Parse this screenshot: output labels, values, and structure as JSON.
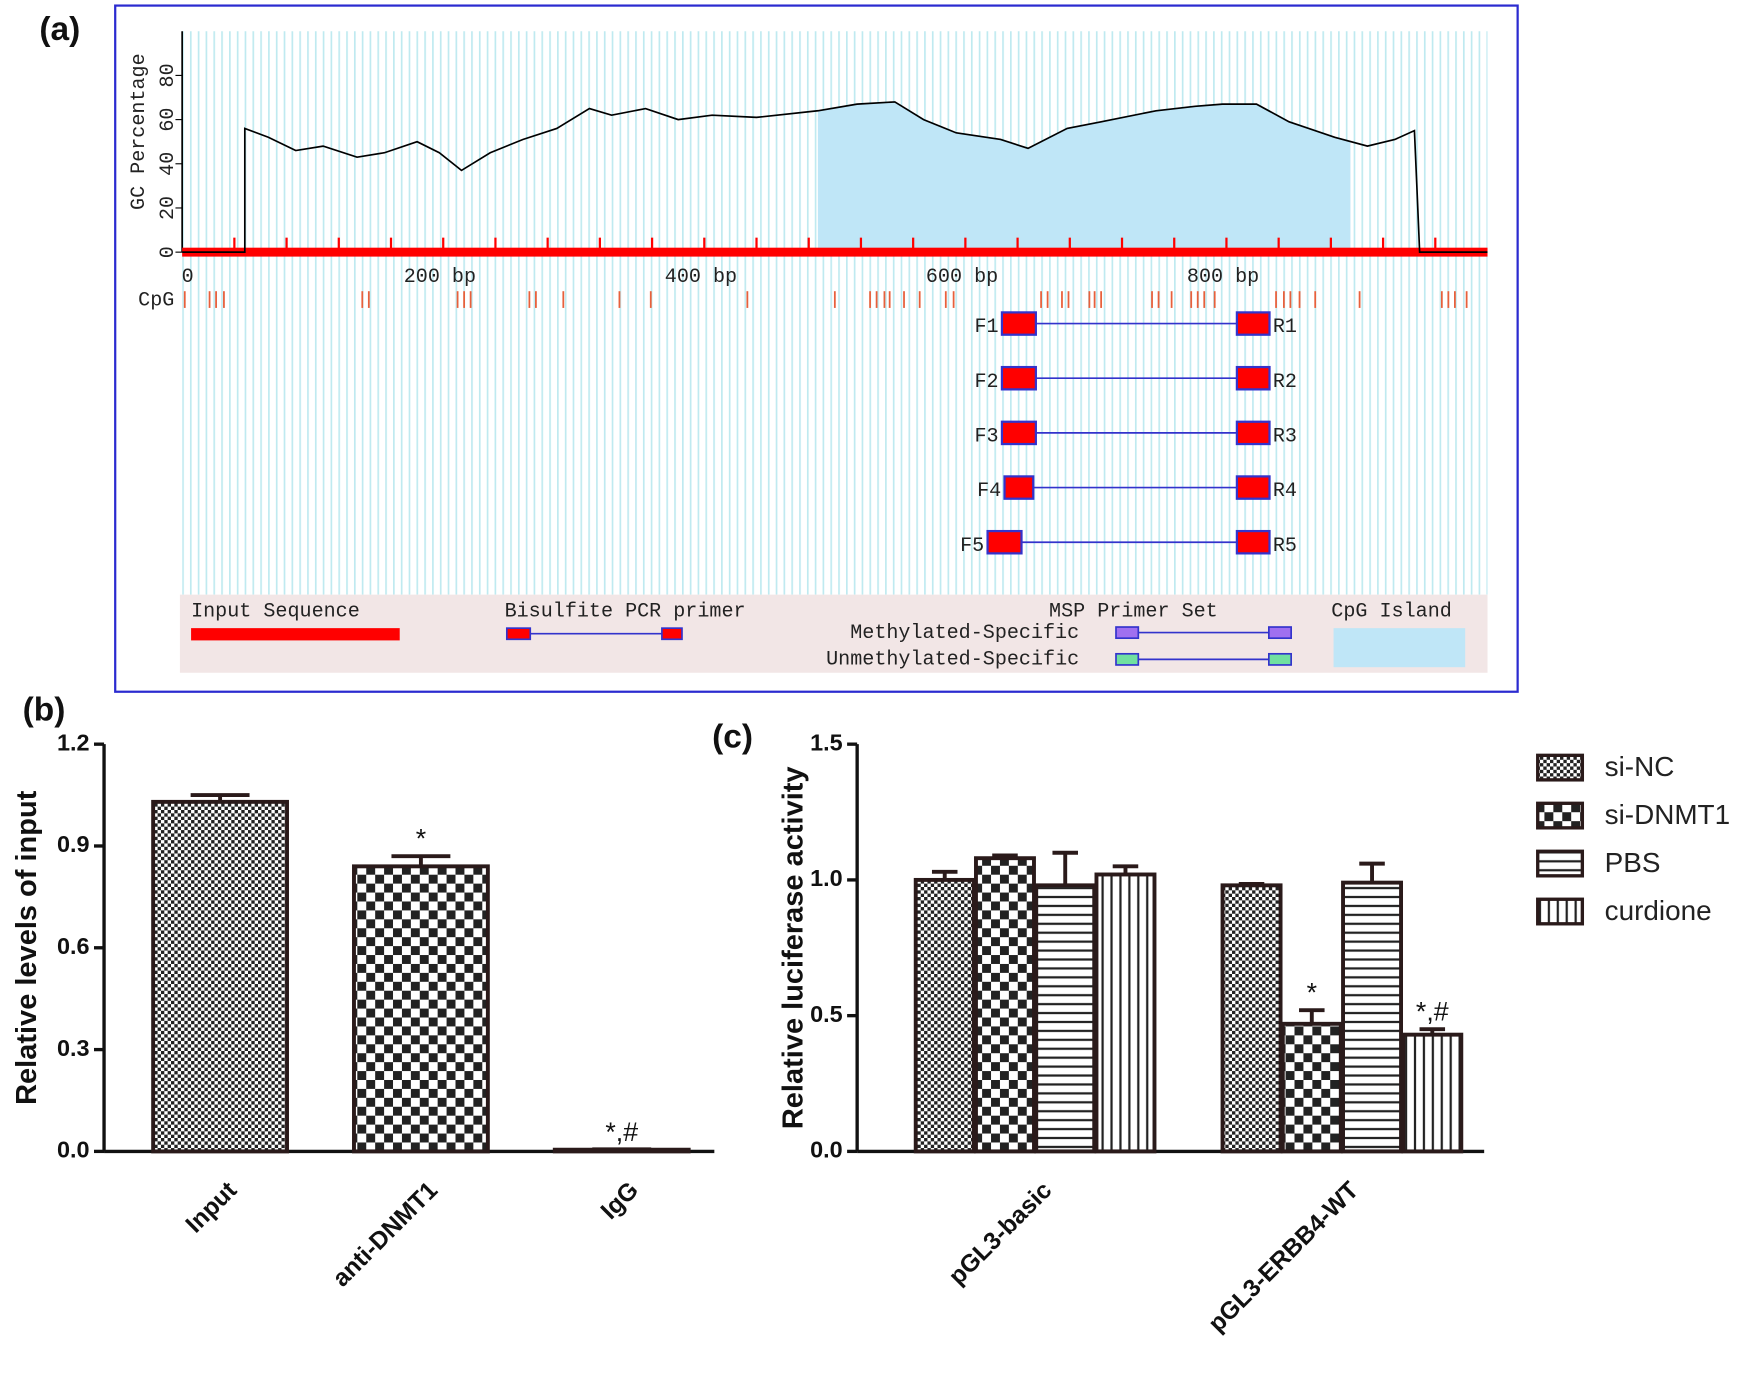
{
  "chart_data": [
    {
      "type": "line",
      "panel_label": "(a)",
      "ylabel": "GC Percentage",
      "xlim": [
        0,
        1000
      ],
      "ylim": [
        0,
        100
      ],
      "xticks": [
        0,
        {
          "value": 200,
          "label": "200 bp"
        },
        {
          "value": 400,
          "label": "400 bp"
        },
        {
          "value": 600,
          "label": "600 bp"
        },
        {
          "value": 800,
          "label": "800 bp"
        }
      ],
      "yticks": [
        0,
        20,
        40,
        60,
        80
      ],
      "x": [
        0,
        48,
        48,
        66,
        87,
        108,
        134,
        155,
        180,
        197,
        214,
        236,
        261,
        287,
        312,
        329,
        355,
        380,
        406,
        440,
        487,
        517,
        546,
        568,
        593,
        627,
        648,
        678,
        704,
        746,
        776,
        797,
        823,
        848,
        883,
        908,
        929,
        944,
        946,
        948,
        1000
      ],
      "values": [
        0,
        0,
        56,
        52,
        46,
        48,
        43,
        45,
        50,
        45,
        37,
        45,
        51,
        56,
        65,
        62,
        65,
        60,
        62,
        61,
        64,
        67,
        68,
        60,
        54,
        51,
        47,
        56,
        59,
        64,
        66,
        67,
        67,
        59,
        52,
        48,
        51,
        55,
        28,
        0,
        0
      ],
      "color": "#000000",
      "sequence_color": "#ff0000",
      "x_minor_ticks": [
        40,
        80,
        120,
        160,
        200,
        240,
        280,
        320,
        360,
        400,
        440,
        480,
        520,
        560,
        600,
        640,
        680,
        720,
        760,
        800,
        840,
        880,
        920,
        960
      ],
      "cpg_label": "CpG",
      "cpg_color": "#e8603c",
      "cpg_sites": [
        2,
        21,
        26,
        32,
        138,
        143,
        211,
        216,
        221,
        266,
        271,
        292,
        335,
        359,
        433,
        500,
        527,
        532,
        538,
        542,
        553,
        565,
        585,
        591,
        658,
        663,
        674,
        679,
        695,
        699,
        704,
        743,
        748,
        758,
        773,
        778,
        783,
        791,
        838,
        844,
        849,
        856,
        868,
        902,
        965,
        970,
        975,
        984
      ],
      "cpg_island": [
        487,
        895
      ],
      "island_color": "#bfe6f7",
      "primer_color": "#ff0000",
      "primer_link_color": "#3333cc",
      "primers": [
        {
          "forward": "F1",
          "reverse": "R1",
          "forward_range": [
            628,
            654
          ],
          "reverse_range": [
            808,
            833
          ]
        },
        {
          "forward": "F2",
          "reverse": "R2",
          "forward_range": [
            628,
            654
          ],
          "reverse_range": [
            808,
            833
          ]
        },
        {
          "forward": "F3",
          "reverse": "R3",
          "forward_range": [
            628,
            654
          ],
          "reverse_range": [
            808,
            833
          ]
        },
        {
          "forward": "F4",
          "reverse": "R4",
          "forward_range": [
            630,
            652
          ],
          "reverse_range": [
            808,
            833
          ]
        },
        {
          "forward": "F5",
          "reverse": "R5",
          "forward_range": [
            617,
            643
          ],
          "reverse_range": [
            808,
            833
          ]
        }
      ],
      "legend": {
        "input_sequence": "Input Sequence",
        "bisulfite": "Bisulfite PCR primer",
        "msp": "MSP Primer Set",
        "methylated": "Methylated-Specific",
        "unmethylated": "Unmethylated-Specific",
        "cpg_island": "CpG Island"
      }
    },
    {
      "type": "bar",
      "panel_label": "(b)",
      "ylabel": "Relative levels of input",
      "categories": [
        "Input",
        "anti-DNMT1",
        "IgG"
      ],
      "values": [
        1.03,
        0.84,
        0.005
      ],
      "errors": [
        0.02,
        0.03,
        0.001
      ],
      "significance": [
        null,
        "*",
        "*,#"
      ],
      "fill_patterns": [
        "checker-fine",
        "checker-coarse",
        "checker-coarse"
      ],
      "ylim": [
        0,
        1.2
      ],
      "yticks": [
        {
          "value": 0,
          "label": "0.0"
        },
        0.3,
        0.6,
        0.9,
        1.2
      ]
    },
    {
      "type": "grouped-bar",
      "panel_label": "(c)",
      "ylabel": "Relative luciferase activity",
      "categories": [
        "pGL3-basic",
        "pGL3-ERBB4-WT"
      ],
      "series": [
        {
          "name": "si-NC",
          "fill_pattern": "checker-fine",
          "values": [
            1.0,
            0.98
          ],
          "errors": [
            0.03,
            0.005
          ],
          "significance": [
            null,
            null
          ]
        },
        {
          "name": "si-DNMT1",
          "fill_pattern": "checker-coarse",
          "values": [
            1.08,
            0.47
          ],
          "errors": [
            0.01,
            0.05
          ],
          "significance": [
            null,
            "*"
          ]
        },
        {
          "name": "PBS",
          "fill_pattern": "hstripes",
          "values": [
            0.98,
            0.99
          ],
          "errors": [
            0.12,
            0.07
          ],
          "significance": [
            null,
            null
          ]
        },
        {
          "name": "curdione",
          "fill_pattern": "vstripes",
          "values": [
            1.02,
            0.43
          ],
          "errors": [
            0.03,
            0.02
          ],
          "significance": [
            null,
            "*,#"
          ]
        }
      ],
      "ylim": [
        0,
        1.5
      ],
      "yticks": [
        {
          "value": 0,
          "label": "0.0"
        },
        0.5,
        {
          "value": 1,
          "label": "1.0"
        },
        1.5
      ],
      "legend": "right"
    }
  ]
}
